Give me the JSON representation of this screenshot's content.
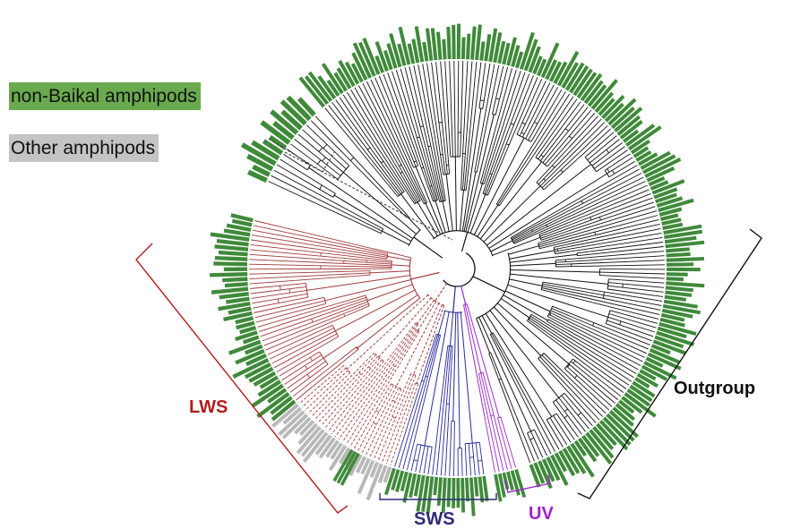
{
  "legend": {
    "items": [
      {
        "label": "non-Baikal amphipods",
        "color": "#6aaa4e"
      },
      {
        "label": "Other amphipods",
        "color": "#c4c4c4"
      }
    ]
  },
  "clades": [
    {
      "key": "lws",
      "label": "LWS",
      "color": "#b01c1c"
    },
    {
      "key": "sws",
      "label": "SWS",
      "color": "#2e2a7a"
    },
    {
      "key": "uv",
      "label": "UV",
      "color": "#a020d0"
    },
    {
      "key": "outgroup",
      "label": "Outgroup",
      "color": "#111111"
    }
  ],
  "colors": {
    "bar_green": "#3f8a3a",
    "bar_grey": "#b8b8b8",
    "branch_black": "#111111",
    "branch_lws": "#a33a3a",
    "branch_sws": "#2a2a9a",
    "branch_uv": "#9a2ac8"
  }
}
